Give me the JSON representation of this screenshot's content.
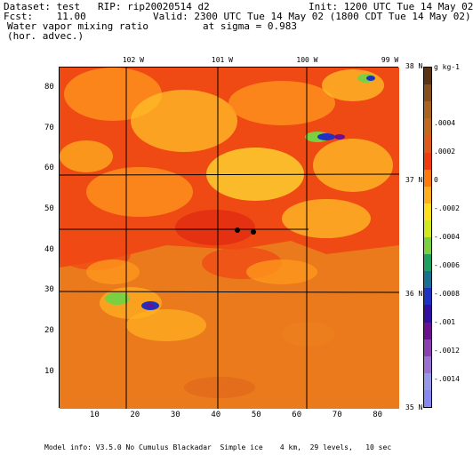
{
  "header": {
    "dataset": "Dataset: test   RIP: rip20020514 d2",
    "init": "Init: 1200 UTC Tue 14 May 02",
    "fcst": "Fcst:    11.00",
    "valid": "Valid: 2300 UTC Tue 14 May 02 (1800 CDT Tue 14 May 02)",
    "field": "Water vapor mixing ratio",
    "sigma": "at sigma = 0.983",
    "advection": "(hor. advec.)"
  },
  "footer": {
    "model_info": "Model info: V3.5.0 No Cumulus Blackadar  Simple ice    4 km,  29 levels,   10 sec"
  },
  "chart_data": {
    "type": "heatmap",
    "title": "Water vapor mixing ratio",
    "subtitle": "(hor. advec.)",
    "xlim": [
      1,
      85
    ],
    "ylim": [
      1,
      85
    ],
    "x_ticks": [
      10,
      20,
      30,
      40,
      50,
      60,
      70,
      80
    ],
    "y_ticks": [
      10,
      20,
      30,
      40,
      50,
      60,
      70,
      80
    ],
    "x_tick_labels": [
      "10",
      "20",
      "30",
      "40",
      "50",
      "60",
      "70",
      "80"
    ],
    "y_tick_labels": [
      "10",
      "20",
      "30",
      "40",
      "50",
      "60",
      "70",
      "80"
    ],
    "longitude_labels": [
      {
        "text": "102 W",
        "x": 19
      },
      {
        "text": "101 W",
        "x": 41
      },
      {
        "text": "100 W",
        "x": 62
      },
      {
        "text": "99 W",
        "x": 83
      }
    ],
    "latitude_labels": [
      {
        "text": "38 N",
        "y": 85
      },
      {
        "text": "37 N",
        "y": 57
      },
      {
        "text": "36 N",
        "y": 29
      },
      {
        "text": "35 N",
        "y": 1
      }
    ],
    "colorbar": {
      "unit": "g kg-1",
      "ticks": [
        {
          "label": ".0004",
          "value": 0.0004
        },
        {
          "label": ".0002",
          "value": 0.0002
        },
        {
          "label": "0",
          "value": 0
        },
        {
          "label": "-.0002",
          "value": -0.0002
        },
        {
          "label": "-.0004",
          "value": -0.0004
        },
        {
          "label": "-.0006",
          "value": -0.0006
        },
        {
          "label": "-.0008",
          "value": -0.0008
        },
        {
          "label": "-.001",
          "value": -0.001
        },
        {
          "label": "-.0012",
          "value": -0.0012
        },
        {
          "label": "-.0014",
          "value": -0.0014
        }
      ],
      "colors": [
        "#5a3414",
        "#86501e",
        "#a9641f",
        "#c06a20",
        "#dc5a1a",
        "#f03a10",
        "#ff7a10",
        "#ffae20",
        "#ffe020",
        "#d0e820",
        "#7ad040",
        "#20a060",
        "#1a7090",
        "#2030c0",
        "#3010a0",
        "#6a1090",
        "#8a40b0",
        "#9a70d0",
        "#9898e8",
        "#8888f0"
      ]
    },
    "grid": false
  }
}
